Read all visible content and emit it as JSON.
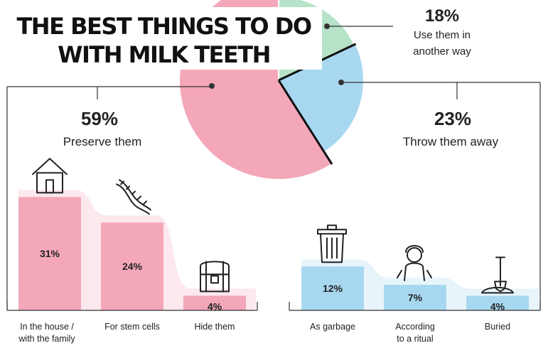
{
  "title_lines": [
    "THE BEST THINGS TO DO",
    "WITH MILK TEETH"
  ],
  "chart_data": [
    {
      "type": "pie",
      "slices": [
        {
          "percent_label": "59%",
          "label": "Preserve them",
          "value": 59,
          "color": "#f4a7b9"
        },
        {
          "percent_label": "23%",
          "label": "Throw them away",
          "value": 23,
          "color": "#a8d8f0"
        },
        {
          "percent_label": "18%",
          "label_lines": [
            "Use them in",
            "another way"
          ],
          "value": 18,
          "color": "#b6e3c8"
        }
      ]
    },
    {
      "type": "bar",
      "group": "Preserve them",
      "color": "#f4a7b9",
      "categories": [
        {
          "lines": [
            "In the house /",
            "with the family"
          ],
          "icon": "house-icon"
        },
        {
          "lines": [
            "For stem cells"
          ],
          "icon": "dna-icon"
        },
        {
          "lines": [
            "Hide them"
          ],
          "icon": "treasure-chest-icon"
        }
      ],
      "values": [
        31,
        24,
        4
      ],
      "value_labels": [
        "31%",
        "24%",
        "4%"
      ]
    },
    {
      "type": "bar",
      "group": "Throw them away",
      "color": "#a8d8f0",
      "categories": [
        {
          "lines": [
            "As garbage"
          ],
          "icon": "trash-can-icon"
        },
        {
          "lines": [
            "According",
            "to a ritual"
          ],
          "icon": "child-icon"
        },
        {
          "lines": [
            "Buried"
          ],
          "icon": "shovel-icon"
        }
      ],
      "values": [
        12,
        7,
        4
      ],
      "value_labels": [
        "12%",
        "7%",
        "4%"
      ]
    }
  ]
}
